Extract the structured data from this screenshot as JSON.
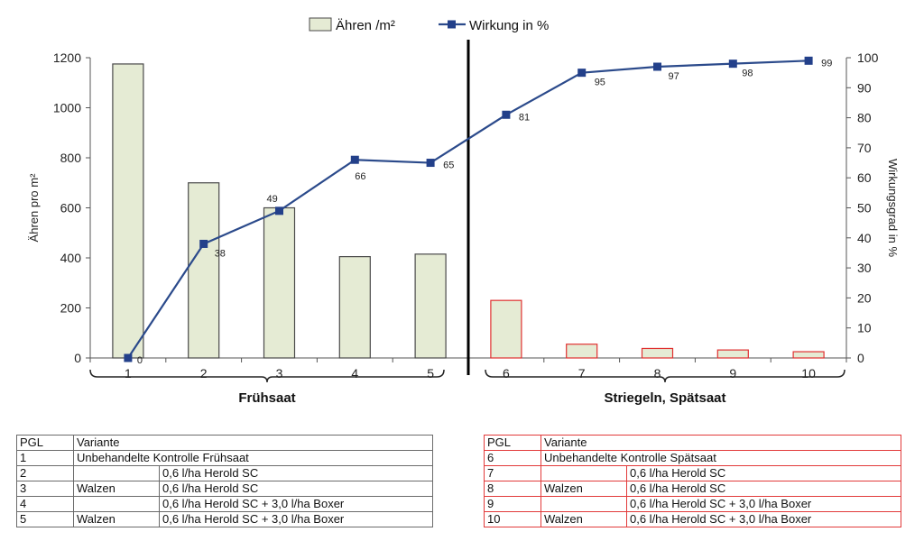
{
  "colors": {
    "bar_fill": "#e5ebd4",
    "bar_stroke_early": "#4a4a4a",
    "bar_stroke_late": "#e03030",
    "line": "#2b4a8b",
    "marker": "#23408a",
    "table_border_left": "#6b6b6b",
    "table_border_right": "#e23a3a"
  },
  "legend": {
    "bars_label": "Ähren /m²",
    "line_label": "Wirkung in %",
    "position": "top"
  },
  "chart_data": {
    "type": "bar",
    "categories": [
      "1",
      "2",
      "3",
      "4",
      "5",
      "6",
      "7",
      "8",
      "9",
      "10"
    ],
    "series": [
      {
        "name": "Ähren /m²",
        "type": "bar",
        "axis": "left",
        "values": [
          1175,
          700,
          600,
          405,
          415,
          230,
          55,
          38,
          32,
          25
        ]
      },
      {
        "name": "Wirkung in %",
        "type": "line",
        "axis": "right",
        "values": [
          0,
          38,
          49,
          66,
          65,
          81,
          95,
          97,
          98,
          99
        ],
        "data_labels": [
          "0",
          "38",
          "49",
          "66",
          "65",
          "81",
          "95",
          "97",
          "98",
          "99"
        ]
      }
    ],
    "ylabel": "Ähren pro m²",
    "y2label": "Wirkungsgrad in %",
    "ylim": [
      0,
      1200
    ],
    "y2lim": [
      0,
      100
    ],
    "yticks": [
      "0",
      "200",
      "400",
      "600",
      "800",
      "1000",
      "1200"
    ],
    "y2ticks": [
      "0",
      "10",
      "20",
      "30",
      "40",
      "50",
      "60",
      "70",
      "80",
      "90",
      "100"
    ],
    "groups": [
      {
        "label": "Frühsaat",
        "from": "1",
        "to": "5"
      },
      {
        "label": "Striegeln, Spätsaat",
        "from": "6",
        "to": "10"
      }
    ],
    "divider_between": [
      "5",
      "6"
    ],
    "grid": false
  },
  "tables": {
    "left": {
      "header": {
        "pgl": "PGL",
        "variante": "Variante"
      },
      "rows": [
        {
          "pgl": "1",
          "full": "Unbehandelte Kontrolle Frühsaat"
        },
        {
          "pgl": "2",
          "v1": "",
          "v2": "0,6 l/ha Herold SC"
        },
        {
          "pgl": "3",
          "v1": "Walzen",
          "v2": "0,6 l/ha Herold SC"
        },
        {
          "pgl": "4",
          "v1": "",
          "v2": "0,6 l/ha Herold SC + 3,0 l/ha Boxer"
        },
        {
          "pgl": "5",
          "v1": "Walzen",
          "v2": "0,6 l/ha Herold SC + 3,0 l/ha Boxer"
        }
      ]
    },
    "right": {
      "header": {
        "pgl": "PGL",
        "variante": "Variante"
      },
      "rows": [
        {
          "pgl": "6",
          "full": "Unbehandelte Kontrolle Spätsaat"
        },
        {
          "pgl": "7",
          "v1": "",
          "v2": "0,6 l/ha Herold SC"
        },
        {
          "pgl": "8",
          "v1": "Walzen",
          "v2": "0,6 l/ha Herold SC"
        },
        {
          "pgl": "9",
          "v1": "",
          "v2": "0,6 l/ha Herold SC + 3,0 l/ha Boxer"
        },
        {
          "pgl": "10",
          "v1": "Walzen",
          "v2": "0,6 l/ha Herold SC + 3,0 l/ha Boxer"
        }
      ]
    }
  }
}
